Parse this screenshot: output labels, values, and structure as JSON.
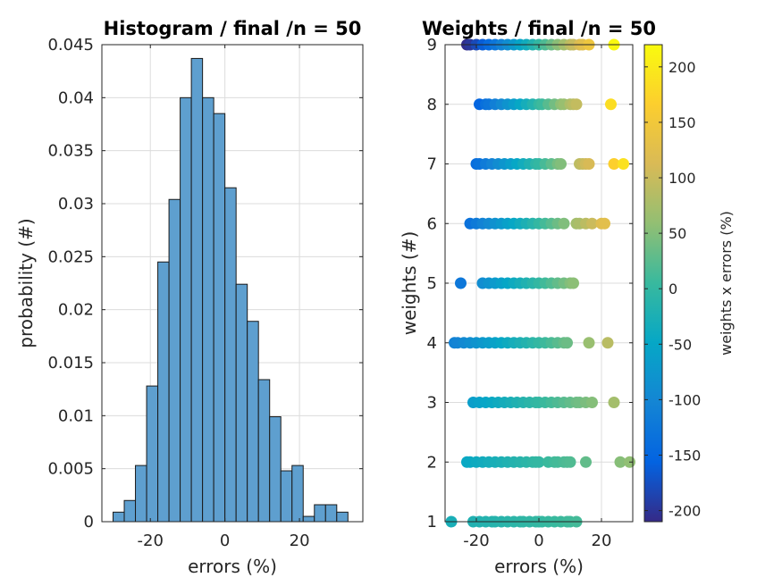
{
  "chart_data": [
    {
      "type": "bar",
      "title": "Histogram / final /n = 50",
      "xlabel": "errors (%)",
      "ylabel": "probability (#)",
      "xlim": [
        -33,
        37
      ],
      "ylim": [
        0,
        0.045
      ],
      "xticks": [
        -20,
        0,
        20
      ],
      "xtick_labels": [
        "-20",
        "0",
        "20"
      ],
      "yticks": [
        0,
        0.005,
        0.01,
        0.015,
        0.02,
        0.025,
        0.03,
        0.035,
        0.04,
        0.045
      ],
      "ytick_labels": [
        "0",
        "0.005",
        "0.01",
        "0.015",
        "0.02",
        "0.025",
        "0.03",
        "0.035",
        "0.04",
        "0.045"
      ],
      "grid": true,
      "bar_color": "#5e9fcf",
      "bin_edges": [
        -30,
        -27,
        -24,
        -21,
        -18,
        -15,
        -12,
        -9,
        -6,
        -3,
        0,
        3,
        6,
        9,
        12,
        15,
        18,
        21,
        24,
        27,
        30,
        33
      ],
      "values": [
        0.0009,
        0.002,
        0.0053,
        0.0128,
        0.0245,
        0.0304,
        0.04,
        0.0437,
        0.04,
        0.0385,
        0.0315,
        0.0224,
        0.0189,
        0.0134,
        0.0099,
        0.0048,
        0.0053,
        0.0005,
        0.0016,
        0.0016,
        0.0009,
        0.0005
      ]
    },
    {
      "type": "scatter",
      "title": "Weights / final /n = 50",
      "xlabel": "errors (%)",
      "ylabel": "weights (#)",
      "xlim": [
        -30,
        30
      ],
      "ylim": [
        1,
        9
      ],
      "xticks": [
        -20,
        0,
        20
      ],
      "xtick_labels": [
        "-20",
        "0",
        "20"
      ],
      "yticks": [
        1,
        2,
        3,
        4,
        5,
        6,
        7,
        8,
        9
      ],
      "ytick_labels": [
        "1",
        "2",
        "3",
        "4",
        "5",
        "6",
        "7",
        "8",
        "9"
      ],
      "grid": true,
      "color_variable": "weights x errors (%)",
      "colorbar": {
        "label": "weights x errors (%)",
        "clim": [
          -210,
          220
        ],
        "ticks": [
          -200,
          -150,
          -100,
          -50,
          0,
          50,
          100,
          150,
          200
        ],
        "tick_labels": [
          "-200",
          "-150",
          "-100",
          "-50",
          "0",
          "50",
          "100",
          "150",
          "200"
        ]
      },
      "series": [
        {
          "weight": 1,
          "x": [
            -28,
            -21,
            -19,
            -17,
            -15,
            -14,
            -12,
            -10,
            -8,
            -6,
            -5,
            -3,
            -1,
            0,
            1,
            3,
            5,
            7,
            9,
            10,
            12
          ]
        },
        {
          "weight": 2,
          "x": [
            -23,
            -22,
            -20,
            -18,
            -16,
            -14,
            -12,
            -10,
            -8,
            -6,
            -4,
            -2,
            -1,
            0,
            3,
            5,
            6,
            8,
            9,
            10,
            15,
            26,
            29
          ]
        },
        {
          "weight": 3,
          "x": [
            -21,
            -19,
            -17,
            -15,
            -13,
            -11,
            -9,
            -7,
            -5,
            -3,
            -1,
            0,
            2,
            4,
            6,
            8,
            10,
            12,
            13,
            15,
            17,
            24
          ]
        },
        {
          "weight": 4,
          "x": [
            -27,
            -26,
            -24,
            -22,
            -20,
            -18,
            -16,
            -14,
            -12,
            -10,
            -8,
            -6,
            -4,
            -2,
            0,
            2,
            4,
            6,
            8,
            9,
            16,
            22
          ]
        },
        {
          "weight": 5,
          "x": [
            -25,
            -18,
            -16,
            -14,
            -12,
            -10,
            -8,
            -6,
            -4,
            -2,
            0,
            2,
            4,
            6,
            8,
            10,
            11
          ]
        },
        {
          "weight": 6,
          "x": [
            -22,
            -20,
            -18,
            -16,
            -14,
            -12,
            -10,
            -8,
            -6,
            -4,
            -2,
            0,
            2,
            4,
            6,
            8,
            12,
            13,
            15,
            17,
            20,
            21
          ]
        },
        {
          "weight": 7,
          "x": [
            -20,
            -19,
            -17,
            -15,
            -13,
            -11,
            -9,
            -7,
            -5,
            -3,
            -1,
            0,
            2,
            4,
            6,
            7,
            13,
            14,
            15,
            16,
            24,
            27
          ]
        },
        {
          "weight": 8,
          "x": [
            -19,
            -17,
            -16,
            -14,
            -12,
            -10,
            -8,
            -6,
            -4,
            -2,
            0,
            1,
            3,
            5,
            7,
            8,
            10,
            11,
            12,
            23
          ]
        },
        {
          "weight": 9,
          "x": [
            -23,
            -22,
            -20,
            -18,
            -16,
            -14,
            -12,
            -10,
            -8,
            -6,
            -4,
            -2,
            0,
            2,
            4,
            6,
            8,
            10,
            11,
            13,
            14,
            16,
            24
          ]
        }
      ]
    }
  ]
}
